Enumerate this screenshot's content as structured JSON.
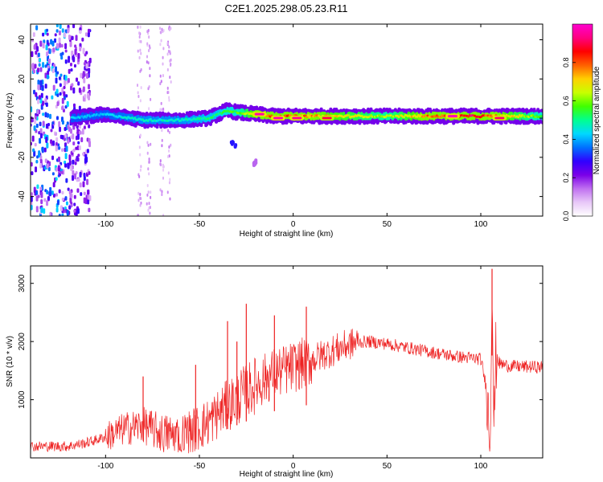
{
  "title": "C2E1.2025.298.05.23.R11",
  "chart_data": [
    {
      "type": "heatmap",
      "title": "C2E1.2025.298.05.23.R11",
      "xlabel": "Height of straight line (km)",
      "ylabel": "Frequency (Hz)",
      "xlim": [
        -140,
        133
      ],
      "ylim": [
        -50,
        48
      ],
      "xticks": [
        -100,
        -50,
        0,
        50,
        100
      ],
      "yticks": [
        -40,
        -20,
        0,
        20,
        40
      ],
      "colorbar": {
        "label": "Normalized spectral amplitude",
        "range": [
          0,
          1
        ],
        "ticks": [
          0.0,
          0.2,
          0.4,
          0.6,
          0.8
        ],
        "colors": [
          "#ffffff",
          "#e8c8f8",
          "#c070f0",
          "#7a00e8",
          "#3000ff",
          "#0070ff",
          "#00d8ff",
          "#00ff90",
          "#40ff00",
          "#c8ff00",
          "#ffd000",
          "#ff6000",
          "#ff0000",
          "#ff0080",
          "#ff00d0"
        ]
      },
      "ridge": {
        "x": [
          -118,
          -100,
          -80,
          -60,
          -45,
          -40,
          -35,
          -30,
          -20,
          -10,
          0,
          25,
          50,
          75,
          95,
          110,
          133
        ],
        "freq_hz": [
          0,
          2,
          -1,
          -1,
          0,
          2,
          4,
          3,
          2,
          1,
          1,
          1,
          1,
          1,
          1,
          1,
          1
        ],
        "amplitude": [
          0.45,
          0.45,
          0.5,
          0.5,
          0.55,
          0.55,
          0.6,
          0.6,
          0.8,
          0.9,
          0.85,
          0.75,
          0.65,
          0.85,
          0.95,
          0.8,
          0.6
        ]
      },
      "hot_spots": [
        {
          "x": -18,
          "freq_hz": 2,
          "amplitude": 0.97
        },
        {
          "x": -8,
          "freq_hz": 0,
          "amplitude": 0.97
        },
        {
          "x": 2,
          "freq_hz": 0,
          "amplitude": 0.95
        },
        {
          "x": 18,
          "freq_hz": 0,
          "amplitude": 0.9
        },
        {
          "x": 85,
          "freq_hz": 1,
          "amplitude": 0.98
        },
        {
          "x": 110,
          "freq_hz": 0,
          "amplitude": 0.92
        }
      ],
      "noise_region": {
        "x_from": -140,
        "x_to": -108,
        "description_amplitude": 0.3
      },
      "secondary_features": [
        {
          "x": -32,
          "freq_hz": -13,
          "amplitude": 0.3
        },
        {
          "x": -20,
          "freq_hz": -22,
          "amplitude": 0.15
        }
      ]
    },
    {
      "type": "line",
      "title": "",
      "xlabel": "Height of straight line (km)",
      "ylabel": "SNR (10 * v/v)",
      "xlim": [
        -140,
        133
      ],
      "ylim": [
        0,
        3300
      ],
      "xticks": [
        -100,
        -50,
        0,
        50,
        100
      ],
      "yticks": [
        1000,
        2000,
        3000
      ],
      "series": [
        {
          "name": "SNR",
          "color": "#ee2222",
          "x": [
            -140,
            -130,
            -120,
            -110,
            -100,
            -90,
            -80,
            -70,
            -60,
            -50,
            -45,
            -40,
            -35,
            -30,
            -25,
            -20,
            -15,
            -10,
            -5,
            0,
            5,
            10,
            15,
            20,
            25,
            30,
            35,
            40,
            50,
            60,
            70,
            80,
            90,
            100,
            103,
            105,
            106,
            107,
            108,
            110,
            115,
            120,
            133
          ],
          "y": [
            200,
            200,
            200,
            260,
            360,
            500,
            560,
            420,
            380,
            520,
            620,
            760,
            900,
            1020,
            1140,
            1250,
            1360,
            1460,
            1500,
            1560,
            1620,
            1680,
            1760,
            1830,
            1890,
            1950,
            1990,
            2000,
            1960,
            1900,
            1840,
            1780,
            1730,
            1700,
            1200,
            300,
            3200,
            400,
            1750,
            1620,
            1580,
            1570,
            1560
          ],
          "spikes": [
            {
              "x": -80,
              "y": 1400
            },
            {
              "x": -52,
              "y": 1600
            },
            {
              "x": -35,
              "y": 2350
            },
            {
              "x": -30,
              "y": 2000
            },
            {
              "x": -25,
              "y": 2650
            },
            {
              "x": -10,
              "y": 2450
            },
            {
              "x": 7,
              "y": 2600
            },
            {
              "x": 106,
              "y": 3250
            }
          ]
        }
      ]
    }
  ]
}
